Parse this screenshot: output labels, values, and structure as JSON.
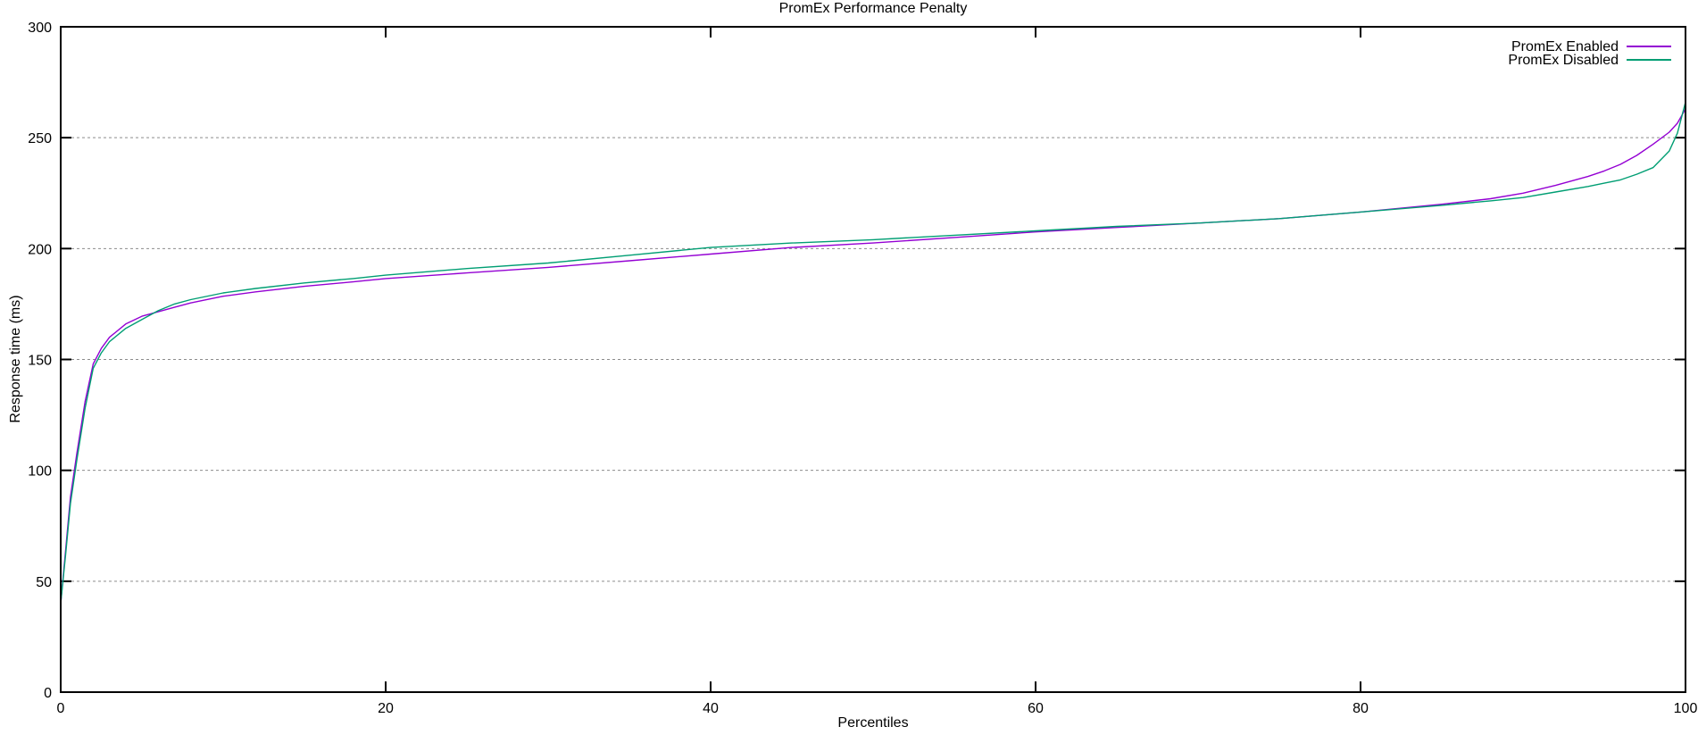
{
  "colors": {
    "background": "#ffffff",
    "axis": "#000000",
    "grid": "#8c8c8c",
    "text": "#000000",
    "series_enabled": "#9400d3",
    "series_disabled": "#009e73"
  },
  "chart_data": {
    "type": "line",
    "title": "PromEx Performance Penalty",
    "xlabel": "Percentiles",
    "ylabel": "Response time (ms)",
    "xlim": [
      0,
      100
    ],
    "ylim": [
      0,
      300
    ],
    "xticks": [
      0,
      20,
      40,
      60,
      80,
      100
    ],
    "yticks": [
      0,
      50,
      100,
      150,
      200,
      250,
      300
    ],
    "grid": {
      "horizontal_dotted": true,
      "vertical": false,
      "color": "#8c8c8c"
    },
    "legend_position": "top-right-inside",
    "series": [
      {
        "name": "PromEx Enabled",
        "color": "#9400d3",
        "points": [
          [
            0,
            40
          ],
          [
            0.3,
            64
          ],
          [
            0.6,
            88
          ],
          [
            1,
            108
          ],
          [
            1.5,
            131
          ],
          [
            2,
            148
          ],
          [
            2.5,
            155
          ],
          [
            3,
            160
          ],
          [
            4,
            166
          ],
          [
            5,
            169.5
          ],
          [
            6,
            171.5
          ],
          [
            7,
            173.5
          ],
          [
            8,
            175.5
          ],
          [
            10,
            178.5
          ],
          [
            12,
            180.5
          ],
          [
            15,
            183
          ],
          [
            18,
            185
          ],
          [
            20,
            186.5
          ],
          [
            25,
            189
          ],
          [
            30,
            191.5
          ],
          [
            35,
            194.5
          ],
          [
            40,
            197.5
          ],
          [
            45,
            200.5
          ],
          [
            50,
            202.5
          ],
          [
            55,
            205
          ],
          [
            60,
            207.5
          ],
          [
            65,
            209.5
          ],
          [
            70,
            211.5
          ],
          [
            75,
            213.5
          ],
          [
            80,
            216.5
          ],
          [
            85,
            220
          ],
          [
            88,
            222.5
          ],
          [
            90,
            225
          ],
          [
            92,
            228.5
          ],
          [
            94,
            232.5
          ],
          [
            95,
            235
          ],
          [
            96,
            238
          ],
          [
            97,
            242
          ],
          [
            98,
            247
          ],
          [
            99,
            252.5
          ],
          [
            99.5,
            256.5
          ],
          [
            100,
            263
          ]
        ]
      },
      {
        "name": "PromEx Disabled",
        "color": "#009e73",
        "points": [
          [
            0,
            40
          ],
          [
            0.3,
            62
          ],
          [
            0.6,
            85
          ],
          [
            1,
            105
          ],
          [
            1.5,
            128
          ],
          [
            2,
            146
          ],
          [
            2.5,
            153
          ],
          [
            3,
            158
          ],
          [
            4,
            164
          ],
          [
            5,
            168
          ],
          [
            6,
            172
          ],
          [
            7,
            175
          ],
          [
            8,
            177
          ],
          [
            10,
            180
          ],
          [
            12,
            182
          ],
          [
            15,
            184.5
          ],
          [
            18,
            186.5
          ],
          [
            20,
            188
          ],
          [
            25,
            191
          ],
          [
            30,
            193.5
          ],
          [
            35,
            197
          ],
          [
            40,
            200.5
          ],
          [
            45,
            202.5
          ],
          [
            50,
            204
          ],
          [
            55,
            206
          ],
          [
            60,
            208
          ],
          [
            65,
            210
          ],
          [
            70,
            211.5
          ],
          [
            75,
            213.5
          ],
          [
            80,
            216.5
          ],
          [
            85,
            219.5
          ],
          [
            88,
            221.5
          ],
          [
            90,
            223
          ],
          [
            92,
            225.5
          ],
          [
            94,
            228
          ],
          [
            95,
            229.5
          ],
          [
            96,
            231
          ],
          [
            97,
            233.5
          ],
          [
            98,
            236.5
          ],
          [
            99,
            244
          ],
          [
            99.5,
            252
          ],
          [
            100,
            266
          ]
        ]
      }
    ]
  }
}
